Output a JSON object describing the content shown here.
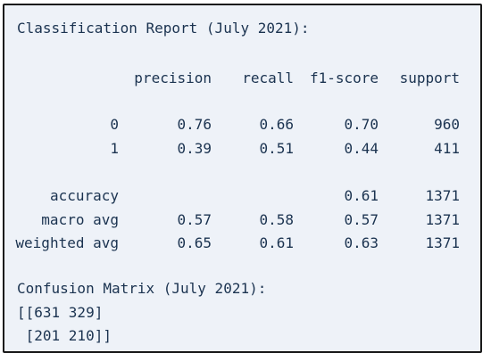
{
  "report": {
    "title": "Classification Report (July 2021):",
    "columns": [
      "precision",
      "recall",
      "f1-score",
      "support"
    ],
    "rows": [
      {
        "label": "0",
        "precision": "0.76",
        "recall": "0.66",
        "f1": "0.70",
        "support": "960"
      },
      {
        "label": "1",
        "precision": "0.39",
        "recall": "0.51",
        "f1": "0.44",
        "support": "411"
      }
    ],
    "summary": [
      {
        "label": "accuracy",
        "precision": "",
        "recall": "",
        "f1": "0.61",
        "support": "1371"
      },
      {
        "label": "macro avg",
        "precision": "0.57",
        "recall": "0.58",
        "f1": "0.57",
        "support": "1371"
      },
      {
        "label": "weighted avg",
        "precision": "0.65",
        "recall": "0.61",
        "f1": "0.63",
        "support": "1371"
      }
    ]
  },
  "confusion": {
    "title": "Confusion Matrix (July 2021):",
    "line1": "[[631 329]",
    "line2": " [201 210]]"
  }
}
